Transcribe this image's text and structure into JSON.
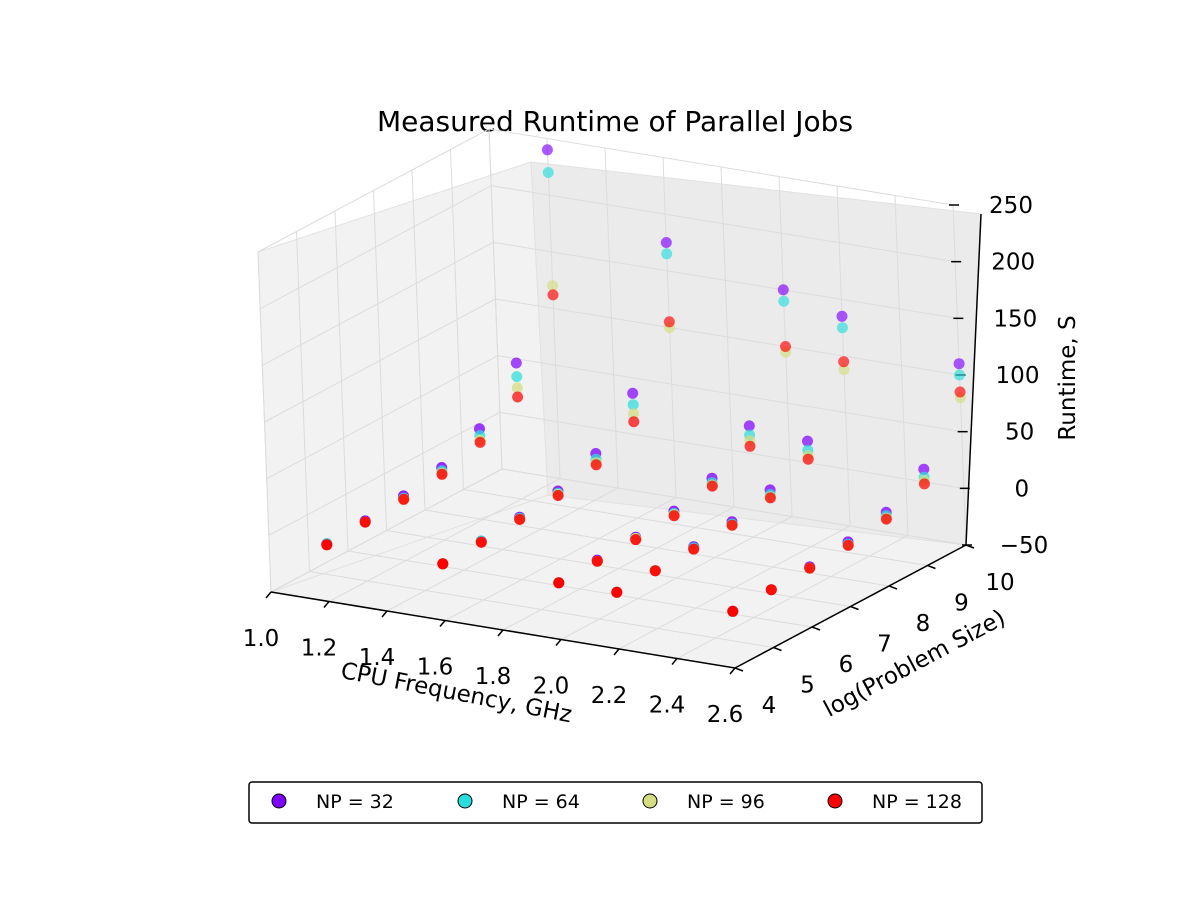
{
  "chart_data": {
    "type": "scatter",
    "projection": "3d",
    "title": "Measured Runtime of Parallel Jobs",
    "xlabel": "CPU Frequency, GHz",
    "ylabel": "log(Problem Size)",
    "zlabel": "Runtime, S",
    "xlim": [
      1.0,
      2.6
    ],
    "ylim": [
      4,
      10
    ],
    "zlim": [
      -50,
      250
    ],
    "xticks": [
      "1.0",
      "1.2",
      "1.4",
      "1.6",
      "1.8",
      "2.0",
      "2.2",
      "2.4",
      "2.6"
    ],
    "yticks": [
      "4",
      "5",
      "6",
      "7",
      "8",
      "9",
      "10"
    ],
    "zticks": [
      "−50",
      "0",
      "50",
      "100",
      "150",
      "200",
      "250"
    ],
    "grid": true,
    "legend_position": "bottom",
    "legend_columns": 4,
    "frequencies": [
      1.2,
      1.6,
      2.0,
      2.2,
      2.6
    ],
    "log_sizes": [
      4,
      5,
      6,
      7,
      8,
      9,
      10
    ],
    "series": [
      {
        "name": "NP = 32",
        "color": "#8000ff",
        "runtime": [
          [
            1,
            3,
            7,
            14,
            30,
            70,
            240
          ],
          [
            0,
            2,
            5,
            10,
            25,
            60,
            175
          ],
          [
            0,
            2,
            4,
            9,
            20,
            48,
            150
          ],
          [
            0,
            1,
            4,
            8,
            18,
            43,
            135
          ],
          [
            0,
            1,
            3,
            7,
            15,
            35,
            110
          ]
        ]
      },
      {
        "name": "NP = 64",
        "color": "#2adddd",
        "runtime": [
          [
            1,
            2,
            5,
            11,
            24,
            58,
            220
          ],
          [
            0,
            2,
            4,
            8,
            20,
            50,
            165
          ],
          [
            0,
            1,
            3,
            7,
            16,
            40,
            140
          ],
          [
            0,
            1,
            3,
            6,
            14,
            35,
            125
          ],
          [
            0,
            1,
            2,
            5,
            12,
            28,
            100
          ]
        ]
      },
      {
        "name": "NP = 96",
        "color": "#d4dd80",
        "runtime": [
          [
            0,
            2,
            4,
            9,
            20,
            48,
            120
          ],
          [
            0,
            1,
            3,
            7,
            17,
            42,
            100
          ],
          [
            0,
            1,
            3,
            6,
            14,
            35,
            95
          ],
          [
            0,
            1,
            2,
            5,
            12,
            30,
            88
          ],
          [
            0,
            1,
            2,
            4,
            10,
            25,
            80
          ]
        ]
      },
      {
        "name": "NP = 128",
        "color": "#ff0000",
        "runtime": [
          [
            0,
            2,
            4,
            8,
            18,
            40,
            112
          ],
          [
            0,
            1,
            3,
            6,
            15,
            35,
            105
          ],
          [
            0,
            1,
            2,
            5,
            13,
            30,
            100
          ],
          [
            0,
            1,
            2,
            5,
            11,
            27,
            95
          ],
          [
            0,
            1,
            2,
            4,
            9,
            22,
            85
          ]
        ]
      }
    ]
  }
}
